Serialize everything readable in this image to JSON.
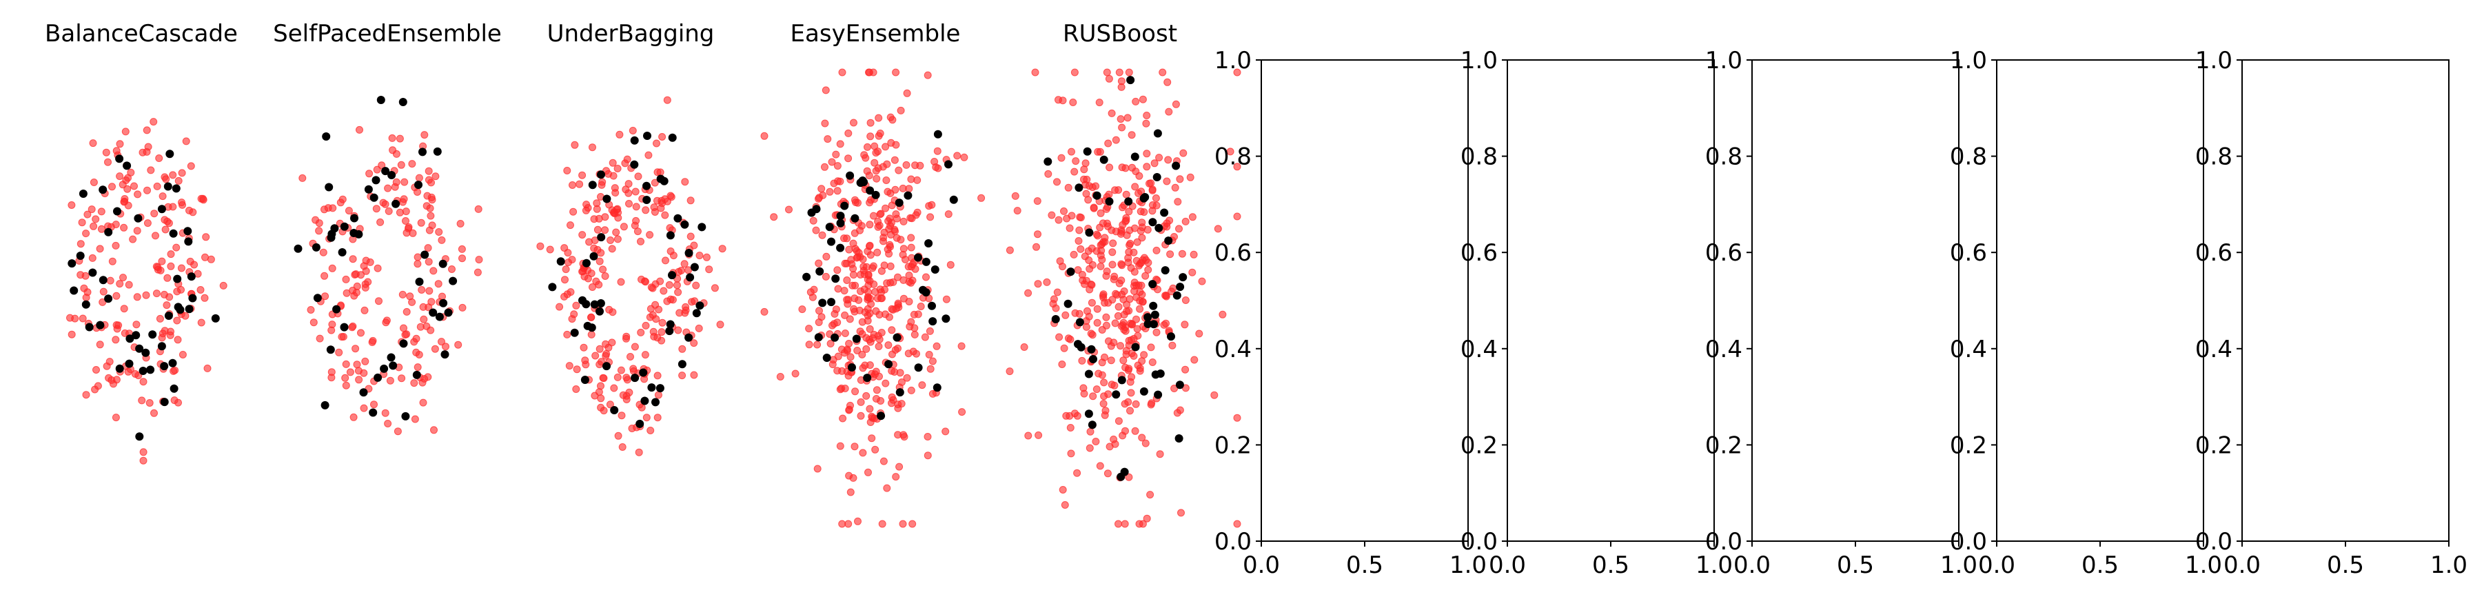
{
  "figure": {
    "background": "#ffffff"
  },
  "chart_data": [
    {
      "type": "scatter",
      "title": "BalanceCascade",
      "axis": "off",
      "colors": {
        "majority": "#ff2a2a",
        "minority": "#000000"
      },
      "generator": {
        "shape": "ring",
        "majority_count": 190,
        "minority_count": 46,
        "seed": 11
      }
    },
    {
      "type": "scatter",
      "title": "SelfPacedEnsemble",
      "axis": "off",
      "colors": {
        "majority": "#ff2a2a",
        "minority": "#000000"
      },
      "generator": {
        "shape": "ring",
        "majority_count": 190,
        "minority_count": 46,
        "seed": 23
      }
    },
    {
      "type": "scatter",
      "title": "UnderBagging",
      "axis": "off",
      "colors": {
        "majority": "#ff2a2a",
        "minority": "#000000"
      },
      "generator": {
        "shape": "ring",
        "majority_count": 260,
        "minority_count": 48,
        "seed": 37
      }
    },
    {
      "type": "scatter",
      "title": "EasyEnsemble",
      "axis": "off",
      "colors": {
        "majority": "#ff2a2a",
        "minority": "#000000"
      },
      "generator": {
        "shape": "blob",
        "majority_count": 420,
        "minority_count": 46,
        "seed": 41
      }
    },
    {
      "type": "scatter",
      "title": "RUSBoost",
      "axis": "off",
      "colors": {
        "majority": "#ff2a2a",
        "minority": "#000000"
      },
      "generator": {
        "shape": "blob",
        "majority_count": 420,
        "minority_count": 52,
        "seed": 53
      }
    },
    {
      "type": "scatter",
      "title": "",
      "axis": "on",
      "xlim": [
        0.0,
        1.0
      ],
      "ylim": [
        0.0,
        1.0
      ],
      "xticks": [
        "0.0",
        "0.5",
        "1.0"
      ],
      "yticks": [
        "0.0",
        "0.2",
        "0.4",
        "0.6",
        "0.8",
        "1.0"
      ],
      "series": []
    },
    {
      "type": "scatter",
      "title": "",
      "axis": "on",
      "xlim": [
        0.0,
        1.0
      ],
      "ylim": [
        0.0,
        1.0
      ],
      "xticks": [
        "0.0",
        "0.5",
        "1.0"
      ],
      "yticks": [
        "0.0",
        "0.2",
        "0.4",
        "0.6",
        "0.8",
        "1.0"
      ],
      "series": []
    },
    {
      "type": "scatter",
      "title": "",
      "axis": "on",
      "xlim": [
        0.0,
        1.0
      ],
      "ylim": [
        0.0,
        1.0
      ],
      "xticks": [
        "0.0",
        "0.5",
        "1.0"
      ],
      "yticks": [
        "0.0",
        "0.2",
        "0.4",
        "0.6",
        "0.8",
        "1.0"
      ],
      "series": []
    },
    {
      "type": "scatter",
      "title": "",
      "axis": "on",
      "xlim": [
        0.0,
        1.0
      ],
      "ylim": [
        0.0,
        1.0
      ],
      "xticks": [
        "0.0",
        "0.5",
        "1.0"
      ],
      "yticks": [
        "0.0",
        "0.2",
        "0.4",
        "0.6",
        "0.8",
        "1.0"
      ],
      "series": []
    },
    {
      "type": "scatter",
      "title": "",
      "axis": "on",
      "xlim": [
        0.0,
        1.0
      ],
      "ylim": [
        0.0,
        1.0
      ],
      "xticks": [
        "0.0",
        "0.5",
        "1.0"
      ],
      "yticks": [
        "0.0",
        "0.2",
        "0.4",
        "0.6",
        "0.8",
        "1.0"
      ],
      "series": []
    }
  ]
}
